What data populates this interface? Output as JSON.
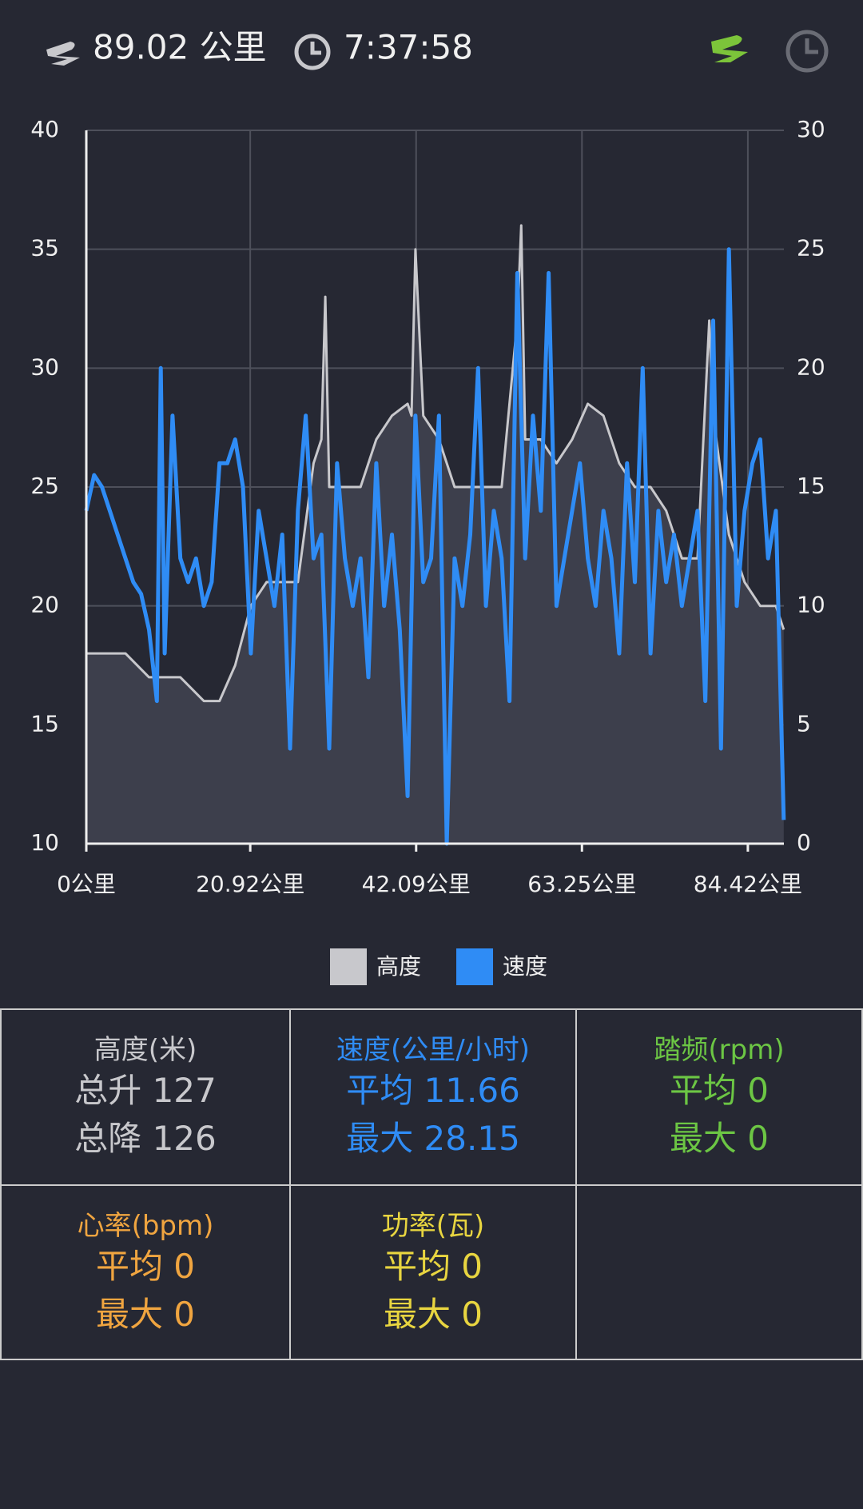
{
  "header": {
    "distance": "89.02 公里",
    "time": "7:37:58"
  },
  "chart_data": {
    "type": "line",
    "xlim": [
      0,
      89.02
    ],
    "xticks": [
      {
        "value": 0,
        "label": "0公里"
      },
      {
        "value": 20.92,
        "label": "20.92公里"
      },
      {
        "value": 42.09,
        "label": "42.09公里"
      },
      {
        "value": 63.25,
        "label": "63.25公里"
      },
      {
        "value": 84.42,
        "label": "84.42公里"
      }
    ],
    "ylim": [
      10,
      40
    ],
    "yticks": [
      10,
      15,
      20,
      25,
      30,
      35,
      40
    ],
    "y2lim": [
      0,
      30
    ],
    "y2ticks": [
      0,
      5,
      10,
      15,
      20,
      25,
      30
    ],
    "grid": true,
    "legend": "bottom",
    "series": [
      {
        "name": "高度",
        "color": "#c8c8cc",
        "fill": "#3d3f4c",
        "x": [
          0,
          5,
          8,
          10,
          12,
          15,
          17,
          19,
          21,
          23,
          25,
          27,
          29,
          30,
          30.5,
          31,
          33,
          35,
          37,
          39,
          41,
          41.5,
          42,
          43,
          45,
          47,
          49,
          51,
          53,
          55,
          55.5,
          56,
          58,
          60,
          62,
          64,
          66,
          68,
          70,
          72,
          74,
          76,
          78,
          79.5,
          80,
          82,
          84,
          86,
          88,
          89
        ],
        "values": [
          18,
          18,
          17,
          17,
          17,
          16,
          16,
          17.5,
          20,
          21,
          21,
          21,
          26,
          27,
          33,
          25,
          25,
          25,
          27,
          28,
          28.5,
          28,
          35,
          28,
          27,
          25,
          25,
          25,
          25,
          32,
          36,
          27,
          27,
          26,
          27,
          28.5,
          28,
          26,
          25,
          25,
          24,
          22,
          22,
          32,
          28,
          23,
          21,
          20,
          20,
          19
        ]
      },
      {
        "name": "速度",
        "color": "#2f8cf5",
        "axis": "y2",
        "x": [
          0,
          1,
          2,
          3,
          4,
          5,
          6,
          7,
          8,
          9,
          9.5,
          10,
          11,
          12,
          13,
          14,
          15,
          16,
          17,
          18,
          19,
          20,
          21,
          22,
          23,
          24,
          25,
          26,
          27,
          28,
          29,
          30,
          31,
          32,
          33,
          34,
          35,
          36,
          37,
          38,
          39,
          40,
          41,
          42,
          43,
          44,
          45,
          46,
          47,
          48,
          49,
          50,
          51,
          52,
          53,
          54,
          55,
          56,
          57,
          58,
          59,
          60,
          61,
          62,
          63,
          64,
          65,
          66,
          67,
          68,
          69,
          70,
          71,
          72,
          73,
          74,
          75,
          76,
          77,
          78,
          79,
          80,
          81,
          82,
          83,
          84,
          85,
          86,
          87,
          88,
          89
        ],
        "values": [
          14,
          15.5,
          15,
          14,
          13,
          12,
          11,
          10.5,
          9,
          6,
          20,
          8,
          18,
          12,
          11,
          12,
          10,
          11,
          16,
          16,
          17,
          15,
          8,
          14,
          12,
          10,
          13,
          4,
          14,
          18,
          12,
          13,
          4,
          16,
          12,
          10,
          12,
          7,
          16,
          10,
          13,
          9,
          2,
          18,
          11,
          12,
          18,
          0,
          12,
          10,
          13,
          20,
          10,
          14,
          12,
          6,
          24,
          12,
          18,
          14,
          24,
          10,
          12,
          14,
          16,
          12,
          10,
          14,
          12,
          8,
          16,
          11,
          20,
          8,
          14,
          11,
          13,
          10,
          12,
          14,
          6,
          22,
          4,
          25,
          10,
          14,
          16,
          17,
          12,
          14,
          1
        ]
      }
    ]
  },
  "stats": [
    {
      "title": "高度(米)",
      "color": "#c8c8cc",
      "lines": [
        "总升 127",
        "总降 126"
      ]
    },
    {
      "title": "速度(公里/小时)",
      "color": "#2f8cf5",
      "lines": [
        "平均 11.66",
        "最大 28.15"
      ]
    },
    {
      "title": "踏频(rpm)",
      "color": "#6cc644",
      "lines": [
        "平均 0",
        "最大 0"
      ]
    },
    {
      "title": "心率(bpm)",
      "color": "#f0a540",
      "lines": [
        "平均 0",
        "最大 0"
      ]
    },
    {
      "title": "功率(瓦)",
      "color": "#e8d540",
      "lines": [
        "平均 0",
        "最大 0"
      ]
    }
  ]
}
